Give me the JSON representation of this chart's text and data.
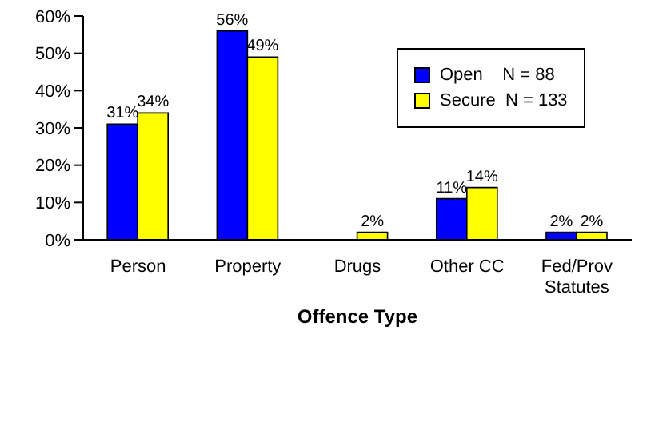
{
  "chart_data": {
    "type": "bar",
    "xlabel": "Offence Type",
    "categories": [
      "Person",
      "Property",
      "Drugs",
      "Other CC",
      "Fed/Prov Statutes"
    ],
    "series": [
      {
        "name": "Open    N = 88",
        "color": "#0000ff",
        "values": [
          31,
          56,
          null,
          11,
          2
        ],
        "value_labels": [
          "31%",
          "56%",
          null,
          "11%",
          "2%"
        ]
      },
      {
        "name": "Secure  N = 133",
        "color": "#ffff00",
        "values": [
          34,
          49,
          2,
          14,
          2
        ],
        "value_labels": [
          "34%",
          "49%",
          "2%",
          "14%",
          "2%"
        ]
      }
    ],
    "ylim": [
      0,
      60
    ],
    "yticks": [
      {
        "value": 0,
        "label": "0%"
      },
      {
        "value": 10,
        "label": "10%"
      },
      {
        "value": 20,
        "label": "20%"
      },
      {
        "value": 30,
        "label": "30%"
      },
      {
        "value": 40,
        "label": "40%"
      },
      {
        "value": 50,
        "label": "50%"
      },
      {
        "value": 60,
        "label": "60%"
      }
    ],
    "grid": false,
    "legend": "top right"
  }
}
